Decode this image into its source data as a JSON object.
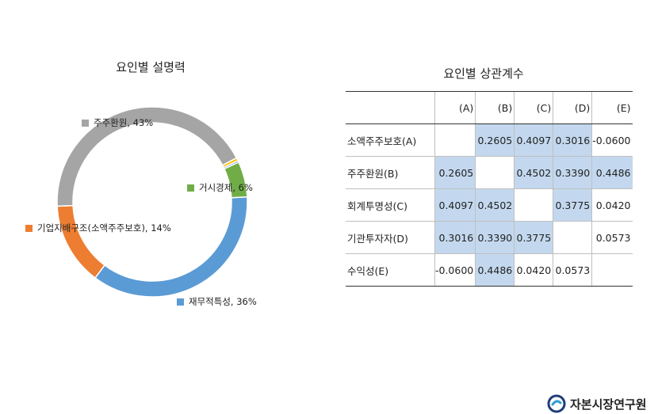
{
  "chart_data": {
    "type": "pie",
    "donut": true,
    "title": "요인별 설명력",
    "slices": [
      {
        "label": "재무적특성",
        "value": 36,
        "display": "재무적특성, 36%",
        "color": "#5b9bd5"
      },
      {
        "label": "기업지배구조(소액주주보호)",
        "value": 14,
        "display": "기업지배구조(소액주주보호), 14%",
        "color": "#ed7d31"
      },
      {
        "label": "주주환원",
        "value": 43,
        "display": "주주환원, 43%",
        "color": "#a5a5a5"
      },
      {
        "label": "",
        "value": 0.5,
        "display": "",
        "color": "#ffc000"
      },
      {
        "label": "",
        "value": 0.3,
        "display": "",
        "color": "#4472c4"
      },
      {
        "label": "거시경제",
        "value": 6,
        "display": "거시경제, 6%",
        "color": "#70ad47"
      }
    ]
  },
  "table": {
    "title": "요인별 상관계수",
    "columns": [
      "(A)",
      "(B)",
      "(C)",
      "(D)",
      "(E)"
    ],
    "rows": [
      {
        "label": "소액주주보호(A)",
        "cells": [
          "",
          "0.2605",
          "0.4097",
          "0.3016",
          "-0.0600"
        ],
        "highlight": [
          false,
          true,
          true,
          true,
          false
        ]
      },
      {
        "label": "주주환원(B)",
        "cells": [
          "0.2605",
          "",
          "0.4502",
          "0.3390",
          "0.4486"
        ],
        "highlight": [
          true,
          false,
          true,
          true,
          true
        ]
      },
      {
        "label": "회계투명성(C)",
        "cells": [
          "0.4097",
          "0.4502",
          "",
          "0.3775",
          "0.0420"
        ],
        "highlight": [
          true,
          true,
          false,
          true,
          false
        ]
      },
      {
        "label": "기관투자자(D)",
        "cells": [
          "0.3016",
          "0.3390",
          "0.3775",
          "",
          "0.0573"
        ],
        "highlight": [
          true,
          true,
          true,
          false,
          false
        ]
      },
      {
        "label": "수익성(E)",
        "cells": [
          "-0.0600",
          "0.4486",
          "0.0420",
          "0.0573",
          ""
        ],
        "highlight": [
          false,
          true,
          false,
          false,
          false
        ]
      }
    ]
  },
  "logo": {
    "text": "자본시장연구원"
  }
}
